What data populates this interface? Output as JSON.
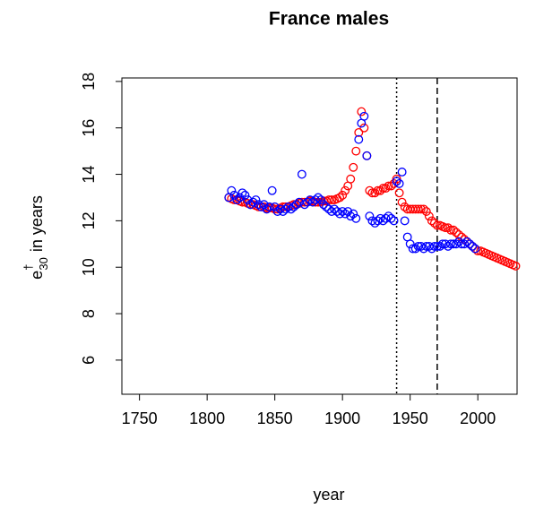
{
  "chart_data": {
    "type": "scatter",
    "title": "France males",
    "xlabel": "year",
    "ylabel": {
      "base": "e",
      "sup": "†",
      "sub": "30",
      "rest": "in years"
    },
    "xlim": [
      1737,
      2029
    ],
    "ylim": [
      4.53,
      18.15
    ],
    "xticks": [
      1750,
      1800,
      1850,
      1900,
      1950,
      2000
    ],
    "yticks": [
      6,
      8,
      10,
      12,
      14,
      16,
      18
    ],
    "vlines": [
      {
        "x": 1940,
        "style": "dotted"
      },
      {
        "x": 1970,
        "style": "dashed"
      }
    ],
    "series": [
      {
        "color": "#ff0000",
        "x": [
          1816,
          1818,
          1820,
          1822,
          1824,
          1826,
          1828,
          1830,
          1832,
          1834,
          1836,
          1838,
          1840,
          1842,
          1844,
          1846,
          1848,
          1850,
          1852,
          1854,
          1856,
          1858,
          1860,
          1862,
          1864,
          1866,
          1868,
          1870,
          1872,
          1874,
          1876,
          1878,
          1880,
          1882,
          1884,
          1886,
          1888,
          1890,
          1892,
          1894,
          1896,
          1898,
          1900,
          1902,
          1904,
          1906,
          1908,
          1910,
          1912,
          1914,
          1916,
          1918,
          1920,
          1922,
          1924,
          1926,
          1928,
          1930,
          1932,
          1934,
          1936,
          1938,
          1940,
          1942,
          1944,
          1946,
          1948,
          1950,
          1952,
          1954,
          1956,
          1958,
          1960,
          1962,
          1964,
          1966,
          1968,
          1970,
          1972,
          1974,
          1976,
          1978,
          1980,
          1982,
          1984,
          1986,
          1988,
          1990,
          1992,
          1994,
          1996,
          1998,
          2000,
          2002,
          2004,
          2006,
          2008,
          2010,
          2012,
          2014,
          2016,
          2018,
          2020,
          2022,
          2024,
          2026,
          2028
        ],
        "values": [
          13.0,
          12.95,
          12.9,
          12.9,
          12.85,
          12.8,
          12.8,
          12.75,
          12.7,
          12.7,
          12.65,
          12.6,
          12.6,
          12.6,
          12.55,
          12.55,
          12.55,
          12.5,
          12.5,
          12.55,
          12.6,
          12.6,
          12.6,
          12.65,
          12.7,
          12.7,
          12.75,
          12.8,
          12.8,
          12.8,
          12.85,
          12.85,
          12.8,
          12.8,
          12.8,
          12.85,
          12.85,
          12.9,
          12.9,
          12.9,
          12.95,
          13.0,
          13.1,
          13.3,
          13.5,
          13.8,
          14.3,
          15.0,
          15.8,
          16.7,
          16.0,
          14.8,
          13.3,
          13.2,
          13.2,
          13.3,
          13.3,
          13.4,
          13.4,
          13.5,
          13.5,
          13.6,
          13.8,
          13.2,
          12.8,
          12.6,
          12.5,
          12.5,
          12.5,
          12.5,
          12.5,
          12.5,
          12.5,
          12.4,
          12.2,
          12.0,
          11.9,
          11.8,
          11.8,
          11.75,
          11.7,
          11.7,
          11.6,
          11.6,
          11.5,
          11.4,
          11.3,
          11.2,
          11.1,
          11.0,
          10.9,
          10.8,
          10.7,
          10.7,
          10.65,
          10.6,
          10.55,
          10.5,
          10.45,
          10.4,
          10.35,
          10.3,
          10.25,
          10.2,
          10.15,
          10.1,
          10.05
        ]
      },
      {
        "color": "#0000ff",
        "x": [
          1816,
          1818,
          1820,
          1822,
          1824,
          1826,
          1828,
          1830,
          1832,
          1834,
          1836,
          1838,
          1840,
          1842,
          1844,
          1846,
          1848,
          1850,
          1852,
          1854,
          1856,
          1858,
          1860,
          1862,
          1864,
          1866,
          1868,
          1870,
          1872,
          1874,
          1876,
          1878,
          1880,
          1882,
          1884,
          1886,
          1888,
          1890,
          1892,
          1894,
          1896,
          1898,
          1900,
          1902,
          1904,
          1906,
          1908,
          1910,
          1912,
          1914,
          1916,
          1918,
          1920,
          1922,
          1924,
          1926,
          1928,
          1930,
          1932,
          1934,
          1936,
          1938,
          1940,
          1942,
          1944,
          1946,
          1948,
          1950,
          1952,
          1954,
          1956,
          1958,
          1960,
          1962,
          1964,
          1966,
          1968,
          1970,
          1972,
          1974,
          1976,
          1978,
          1980,
          1982,
          1984,
          1986,
          1988,
          1990,
          1992,
          1994,
          1996,
          1998
        ],
        "values": [
          13.0,
          13.3,
          13.1,
          12.9,
          13.0,
          13.2,
          13.1,
          12.9,
          12.7,
          12.8,
          12.9,
          12.7,
          12.6,
          12.7,
          12.5,
          12.6,
          13.3,
          12.6,
          12.4,
          12.5,
          12.4,
          12.5,
          12.6,
          12.5,
          12.6,
          12.7,
          12.8,
          14.0,
          12.7,
          12.8,
          12.9,
          12.8,
          12.9,
          13.0,
          12.9,
          12.7,
          12.6,
          12.5,
          12.4,
          12.5,
          12.4,
          12.3,
          12.4,
          12.3,
          12.4,
          12.2,
          12.3,
          12.1,
          15.5,
          16.2,
          16.5,
          14.8,
          12.2,
          12.0,
          11.9,
          12.0,
          12.1,
          12.0,
          12.1,
          12.2,
          12.1,
          12.0,
          13.7,
          13.6,
          14.1,
          12.0,
          11.3,
          11.0,
          10.8,
          10.8,
          10.9,
          10.9,
          10.8,
          10.9,
          10.9,
          10.8,
          10.9,
          10.9,
          10.9,
          11.0,
          11.0,
          10.9,
          11.0,
          11.0,
          11.0,
          11.1,
          11.0,
          11.0,
          11.1,
          11.0,
          10.9,
          10.8
        ]
      }
    ]
  }
}
